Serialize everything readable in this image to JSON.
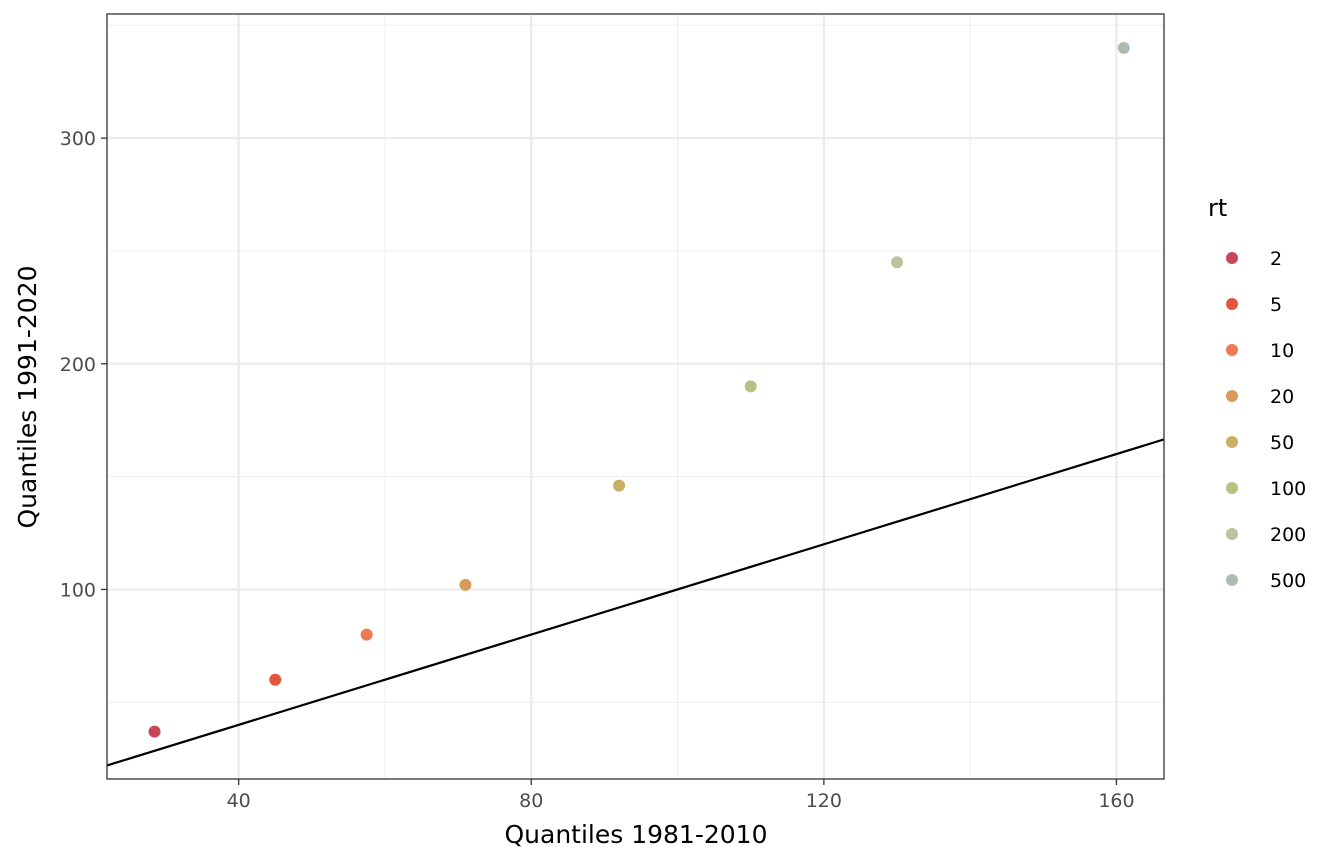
{
  "chart_data": {
    "type": "scatter",
    "title": "",
    "xlabel": "Quantiles 1981-2010",
    "ylabel": "Quantiles 1991-2020",
    "xlim": [
      22,
      166.5
    ],
    "ylim": [
      16,
      355
    ],
    "x_ticks": [
      40,
      80,
      120,
      160
    ],
    "y_ticks": [
      100,
      200,
      300
    ],
    "x_minor": [
      20,
      60,
      100,
      140
    ],
    "y_minor": [
      50,
      150,
      250,
      350
    ],
    "grid": true,
    "legend": {
      "title": "rt",
      "position": "right",
      "entries": [
        "2",
        "5",
        "10",
        "20",
        "50",
        "100",
        "200",
        "500"
      ],
      "colors": [
        "#c8465a",
        "#e4553f",
        "#ec7a52",
        "#d99b5c",
        "#c9b064",
        "#b8c080",
        "#bcc29c",
        "#aebcb0"
      ]
    },
    "points": [
      {
        "rt": "2",
        "x": 28.5,
        "y": 37
      },
      {
        "rt": "5",
        "x": 45,
        "y": 60
      },
      {
        "rt": "10",
        "x": 57.5,
        "y": 80
      },
      {
        "rt": "20",
        "x": 71,
        "y": 102
      },
      {
        "rt": "50",
        "x": 92,
        "y": 146
      },
      {
        "rt": "100",
        "x": 110,
        "y": 190
      },
      {
        "rt": "200",
        "x": 130,
        "y": 245
      },
      {
        "rt": "500",
        "x": 161,
        "y": 340
      }
    ],
    "reference_line": {
      "type": "identity",
      "slope": 1,
      "intercept": 0
    }
  }
}
